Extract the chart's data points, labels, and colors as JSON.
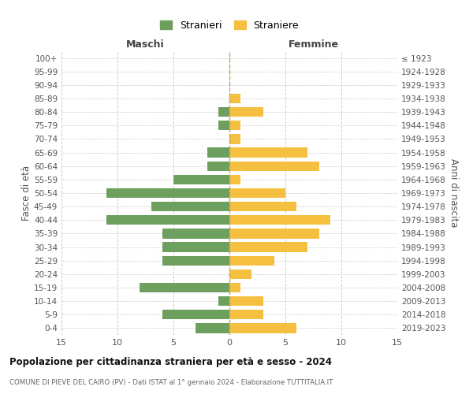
{
  "age_groups": [
    "0-4",
    "5-9",
    "10-14",
    "15-19",
    "20-24",
    "25-29",
    "30-34",
    "35-39",
    "40-44",
    "45-49",
    "50-54",
    "55-59",
    "60-64",
    "65-69",
    "70-74",
    "75-79",
    "80-84",
    "85-89",
    "90-94",
    "95-99",
    "100+"
  ],
  "birth_years": [
    "2019-2023",
    "2014-2018",
    "2009-2013",
    "2004-2008",
    "1999-2003",
    "1994-1998",
    "1989-1993",
    "1984-1988",
    "1979-1983",
    "1974-1978",
    "1969-1973",
    "1964-1968",
    "1959-1963",
    "1954-1958",
    "1949-1953",
    "1944-1948",
    "1939-1943",
    "1934-1938",
    "1929-1933",
    "1924-1928",
    "≤ 1923"
  ],
  "males": [
    3,
    6,
    1,
    8,
    0,
    6,
    6,
    6,
    11,
    7,
    11,
    5,
    2,
    2,
    0,
    1,
    1,
    0,
    0,
    0,
    0
  ],
  "females": [
    6,
    3,
    3,
    1,
    2,
    4,
    7,
    8,
    9,
    6,
    5,
    1,
    8,
    7,
    1,
    1,
    3,
    1,
    0,
    0,
    0
  ],
  "male_color": "#6d9f5e",
  "female_color": "#f5c040",
  "title": "Popolazione per cittadinanza straniera per età e sesso - 2024",
  "subtitle": "COMUNE DI PIEVE DEL CAIRO (PV) - Dati ISTAT al 1° gennaio 2024 - Elaborazione TUTTITALIA.IT",
  "ylabel_left": "Fasce di età",
  "ylabel_right": "Anni di nascita",
  "xlabel_left": "Maschi",
  "xlabel_right": "Femmine",
  "legend_stranieri": "Stranieri",
  "legend_straniere": "Straniere",
  "xlim": 15,
  "background_color": "#ffffff",
  "grid_color": "#cccccc"
}
